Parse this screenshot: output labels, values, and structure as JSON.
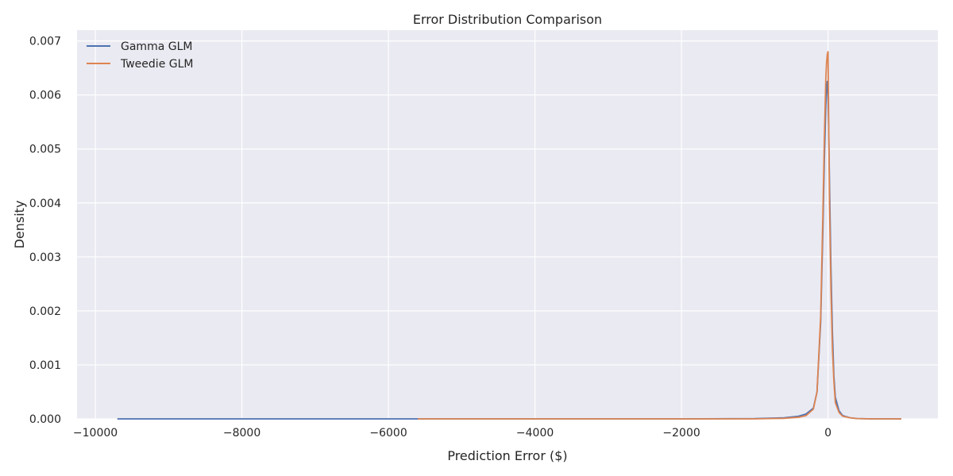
{
  "chart_data": {
    "type": "line",
    "title": "Error Distribution Comparison",
    "xlabel": "Prediction Error ($)",
    "ylabel": "Density",
    "xlim": [
      -10250,
      1500
    ],
    "ylim": [
      0,
      0.0072
    ],
    "xticks": [
      -10000,
      -8000,
      -6000,
      -4000,
      -2000,
      0
    ],
    "xtick_labels": [
      "−10000",
      "−8000",
      "−6000",
      "−4000",
      "−2000",
      "0"
    ],
    "yticks": [
      0,
      0.001,
      0.002,
      0.003,
      0.004,
      0.005,
      0.006,
      0.007
    ],
    "ytick_labels": [
      "0.000",
      "0.001",
      "0.002",
      "0.003",
      "0.004",
      "0.005",
      "0.006",
      "0.007"
    ],
    "grid": true,
    "legend_position": "top-left",
    "series": [
      {
        "name": "Gamma GLM",
        "color": "#4c72b0",
        "x": [
          -9700,
          -8000,
          -6000,
          -4000,
          -2000,
          -1000,
          -600,
          -400,
          -300,
          -200,
          -150,
          -100,
          -70,
          -50,
          -30,
          -20,
          -10,
          0,
          10,
          20,
          40,
          60,
          80,
          100,
          150,
          200,
          300,
          400,
          600,
          1000
        ],
        "y": [
          0,
          0,
          0,
          0,
          0,
          5e-06,
          2e-05,
          5e-05,
          9e-05,
          0.0002,
          0.0005,
          0.0018,
          0.0035,
          0.0048,
          0.0058,
          0.0061,
          0.00625,
          0.006,
          0.0053,
          0.0044,
          0.0028,
          0.0016,
          0.0008,
          0.0004,
          0.00015,
          6e-05,
          2e-05,
          5e-06,
          0,
          0
        ]
      },
      {
        "name": "Tweedie GLM",
        "color": "#dd8452",
        "x": [
          -5600,
          -4000,
          -2000,
          -1000,
          -800,
          -600,
          -400,
          -300,
          -200,
          -150,
          -100,
          -70,
          -50,
          -30,
          -20,
          -10,
          0,
          10,
          20,
          40,
          60,
          80,
          100,
          150,
          200,
          300,
          400,
          600,
          1000
        ],
        "y": [
          0,
          0,
          0,
          0,
          5e-06,
          1e-05,
          3e-05,
          6e-05,
          0.00018,
          0.0005,
          0.0019,
          0.0038,
          0.0052,
          0.0063,
          0.0066,
          0.00675,
          0.0068,
          0.0054,
          0.004,
          0.0024,
          0.0013,
          0.0007,
          0.0003,
          0.00012,
          5e-05,
          2e-05,
          5e-06,
          0,
          0
        ]
      }
    ]
  }
}
